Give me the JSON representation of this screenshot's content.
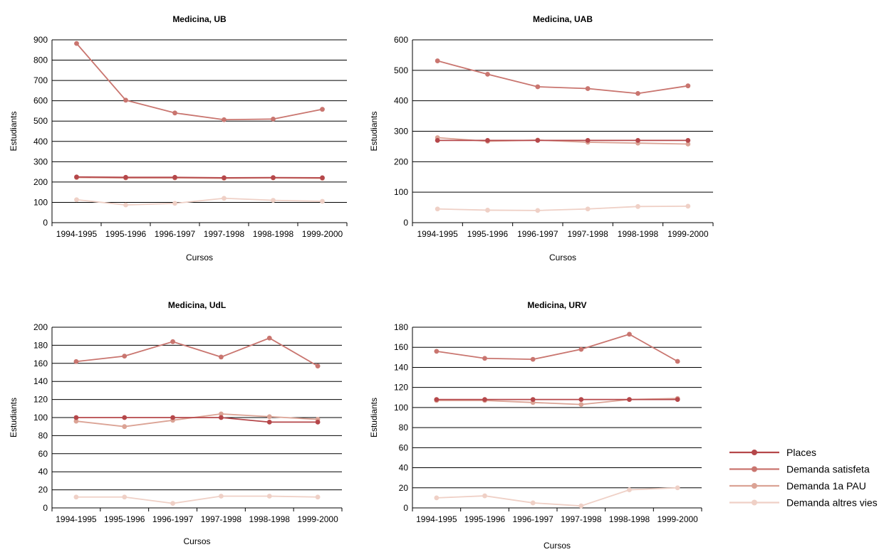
{
  "series_styles": [
    {
      "name": "Places",
      "color": "#b5474a"
    },
    {
      "name": "Demanda satisfeta",
      "color": "#c9756f"
    },
    {
      "name": "Demanda 1a PAU",
      "color": "#dba395"
    },
    {
      "name": "Demanda altres vies",
      "color": "#efd0c6"
    }
  ],
  "legend": {
    "placement": "bottom-right",
    "items": [
      "Places",
      "Demanda satisfeta",
      "Demanda 1a PAU",
      "Demanda altres vies"
    ]
  },
  "chart_data": [
    {
      "type": "line",
      "title": "Medicina, UB",
      "xlabel": "Cursos",
      "ylabel": "Estudiants",
      "categories": [
        "1994-1995",
        "1995-1996",
        "1996-1997",
        "1997-1998",
        "1998-1998",
        "1999-2000"
      ],
      "ylim": [
        0,
        900
      ],
      "yticks": [
        0,
        100,
        200,
        300,
        400,
        500,
        600,
        700,
        800,
        900
      ],
      "grid": true,
      "series": [
        {
          "name": "Places",
          "values": [
            225,
            223,
            223,
            221,
            222,
            221
          ]
        },
        {
          "name": "Demanda satisfeta",
          "values": [
            882,
            603,
            540,
            507,
            510,
            558
          ]
        },
        {
          "name": "Demanda 1a PAU",
          "values": [
            222,
            220,
            220,
            218,
            220,
            218
          ]
        },
        {
          "name": "Demanda altres vies",
          "values": [
            113,
            87,
            95,
            120,
            110,
            105
          ]
        }
      ]
    },
    {
      "type": "line",
      "title": "Medicina, UAB",
      "xlabel": "Cursos",
      "ylabel": "Estudiants",
      "categories": [
        "1994-1995",
        "1995-1996",
        "1996-1997",
        "1997-1998",
        "1998-1998",
        "1999-2000"
      ],
      "ylim": [
        0,
        600
      ],
      "yticks": [
        0,
        100,
        200,
        300,
        400,
        500,
        600
      ],
      "grid": true,
      "series": [
        {
          "name": "Places",
          "values": [
            270,
            270,
            270,
            270,
            270,
            270
          ]
        },
        {
          "name": "Demanda satisfeta",
          "values": [
            531,
            487,
            446,
            440,
            424,
            449
          ]
        },
        {
          "name": "Demanda 1a PAU",
          "values": [
            279,
            267,
            271,
            264,
            261,
            258
          ]
        },
        {
          "name": "Demanda altres vies",
          "values": [
            45,
            41,
            40,
            45,
            53,
            54
          ]
        }
      ]
    },
    {
      "type": "line",
      "title": "Medicina, UdL",
      "xlabel": "Cursos",
      "ylabel": "Estudiants",
      "categories": [
        "1994-1995",
        "1995-1996",
        "1996-1997",
        "1997-1998",
        "1998-1998",
        "1999-2000"
      ],
      "ylim": [
        0,
        200
      ],
      "yticks": [
        0,
        20,
        40,
        60,
        80,
        100,
        120,
        140,
        160,
        180,
        200
      ],
      "grid": true,
      "series": [
        {
          "name": "Places",
          "values": [
            100,
            100,
            100,
            100,
            95,
            95
          ]
        },
        {
          "name": "Demanda satisfeta",
          "values": [
            162,
            168,
            184,
            167,
            188,
            157
          ]
        },
        {
          "name": "Demanda 1a PAU",
          "values": [
            96,
            90,
            97,
            104,
            101,
            98
          ]
        },
        {
          "name": "Demanda altres vies",
          "values": [
            12,
            12,
            5,
            13,
            13,
            12
          ]
        }
      ]
    },
    {
      "type": "line",
      "title": "Medicina, URV",
      "xlabel": "Cursos",
      "ylabel": "Estudiants",
      "categories": [
        "1994-1995",
        "1995-1996",
        "1996-1997",
        "1997-1998",
        "1998-1998",
        "1999-2000"
      ],
      "ylim": [
        0,
        180
      ],
      "yticks": [
        0,
        20,
        40,
        60,
        80,
        100,
        120,
        140,
        160,
        180
      ],
      "grid": true,
      "series": [
        {
          "name": "Places",
          "values": [
            108,
            108,
            108,
            108,
            108,
            108
          ]
        },
        {
          "name": "Demanda satisfeta",
          "values": [
            156,
            149,
            148,
            158,
            173,
            146
          ]
        },
        {
          "name": "Demanda 1a PAU",
          "values": [
            107,
            107,
            105,
            103,
            108,
            109
          ]
        },
        {
          "name": "Demanda altres vies",
          "values": [
            10,
            12,
            5,
            2,
            18,
            20
          ]
        }
      ]
    }
  ]
}
